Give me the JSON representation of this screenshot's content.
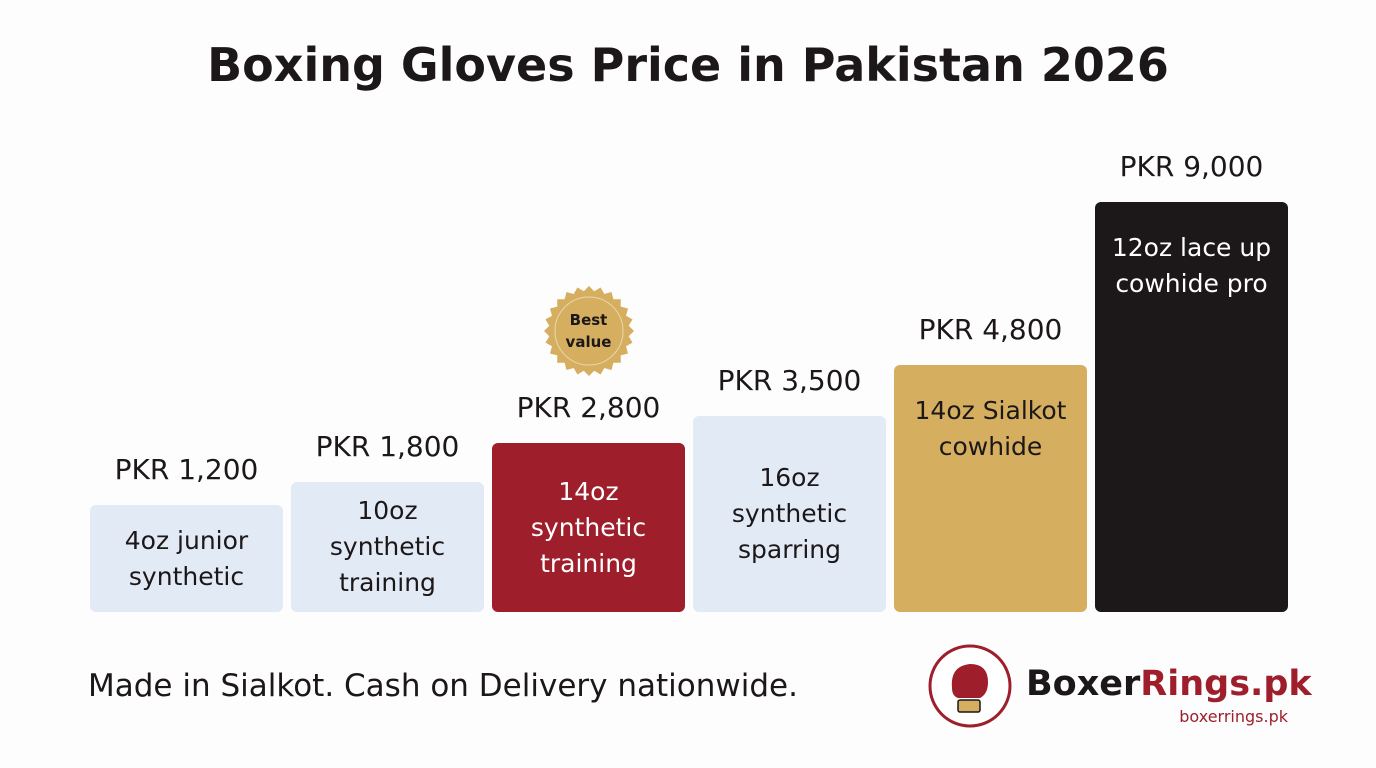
{
  "chart_data": {
    "type": "bar",
    "title": "Boxing Gloves Price in Pakistan 2026",
    "categories": [
      "4oz junior synthetic",
      "10oz synthetic training",
      "14oz synthetic training",
      "16oz synthetic sparring",
      "14oz Sialkot cowhide",
      "12oz lace up cowhide pro"
    ],
    "values": [
      1200,
      1800,
      2800,
      3500,
      4800,
      9000
    ],
    "value_labels": [
      "PKR 1,200",
      "PKR 1,800",
      "PKR 2,800",
      "PKR 3,500",
      "PKR 4,800",
      "PKR 9,000"
    ],
    "colors": [
      "#e2ebf5",
      "#e2ebf5",
      "#9e1f2b",
      "#e2ebf5",
      "#d5ae5f",
      "#1c1718"
    ],
    "badges": [
      null,
      null,
      "Best value",
      null,
      null,
      null
    ],
    "footer": "Made in Sialkot. Cash on Delivery nationwide.",
    "brand": {
      "name_first": "Boxer",
      "name_second": "Rings.pk",
      "url": "boxerrings.pk"
    }
  }
}
